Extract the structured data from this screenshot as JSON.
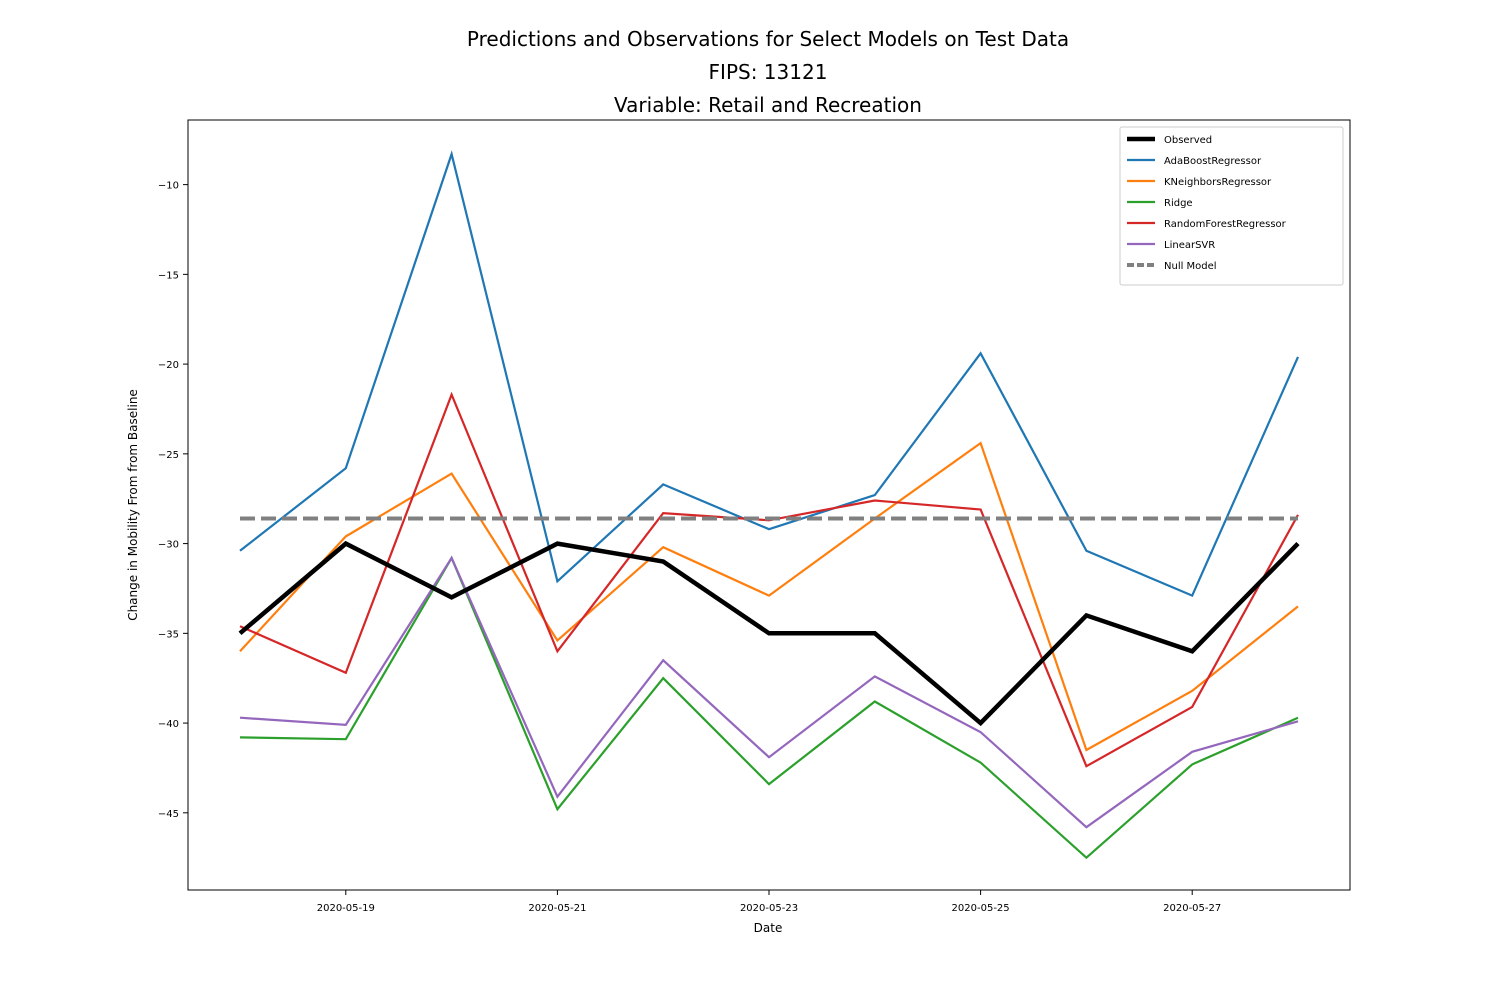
{
  "chart_data": {
    "type": "line",
    "title": [
      "Predictions and Observations for Select Models on Test Data",
      "FIPS: 13121",
      "Variable: Retail and Recreation"
    ],
    "xlabel": "Date",
    "ylabel": "Change in Mobility From from Baseline",
    "x": [
      "2020-05-18",
      "2020-05-19",
      "2020-05-20",
      "2020-05-21",
      "2020-05-22",
      "2020-05-23",
      "2020-05-24",
      "2020-05-25",
      "2020-05-26",
      "2020-05-27",
      "2020-05-28"
    ],
    "xticks": [
      "2020-05-19",
      "2020-05-21",
      "2020-05-23",
      "2020-05-25",
      "2020-05-27"
    ],
    "yticks": [
      -10,
      -15,
      -20,
      -25,
      -30,
      -35,
      -40,
      -45
    ],
    "ytick_labels": [
      "−10",
      "−15",
      "−20",
      "−25",
      "−30",
      "−35",
      "−40",
      "−45"
    ],
    "xlim": [
      "2020-05-17",
      "2020-05-28"
    ],
    "ylim": [
      -49.3,
      -6.4
    ],
    "grid": false,
    "legend_position": "top-right",
    "series": [
      {
        "name": "Observed",
        "color": "#000000",
        "style": "solid-thick",
        "values": [
          -35,
          -30,
          -33,
          -30,
          -31,
          -35,
          -35,
          -40,
          -34,
          -36,
          -30
        ]
      },
      {
        "name": "AdaBoostRegressor",
        "color": "#1f77b4",
        "style": "solid",
        "values": [
          -30.4,
          -25.8,
          -8.3,
          -32.1,
          -26.7,
          -29.2,
          -27.3,
          -19.4,
          -30.4,
          -32.9,
          -19.6
        ]
      },
      {
        "name": "KNeighborsRegressor",
        "color": "#ff7f0e",
        "style": "solid",
        "values": [
          -36.0,
          -29.6,
          -26.1,
          -35.4,
          -30.2,
          -32.9,
          -28.6,
          -24.4,
          -41.5,
          -38.2,
          -33.5
        ]
      },
      {
        "name": "Ridge",
        "color": "#2ca02c",
        "style": "solid",
        "values": [
          -40.8,
          -40.9,
          -30.8,
          -44.8,
          -37.5,
          -43.4,
          -38.8,
          -42.2,
          -47.5,
          -42.3,
          -39.7
        ]
      },
      {
        "name": "RandomForestRegressor",
        "color": "#d62728",
        "style": "solid",
        "values": [
          -34.6,
          -37.2,
          -21.7,
          -36.0,
          -28.3,
          -28.7,
          -27.6,
          -28.1,
          -42.4,
          -39.1,
          -28.4
        ]
      },
      {
        "name": "LinearSVR",
        "color": "#9467bd",
        "style": "solid",
        "values": [
          -39.7,
          -40.1,
          -30.8,
          -44.1,
          -36.5,
          -41.9,
          -37.4,
          -40.5,
          -45.8,
          -41.6,
          -39.9
        ]
      },
      {
        "name": "Null Model",
        "color": "#808080",
        "style": "dashed",
        "values": [
          -28.6,
          -28.6,
          -28.6,
          -28.6,
          -28.6,
          -28.6,
          -28.6,
          -28.6,
          -28.6,
          -28.6,
          -28.6
        ]
      }
    ]
  }
}
